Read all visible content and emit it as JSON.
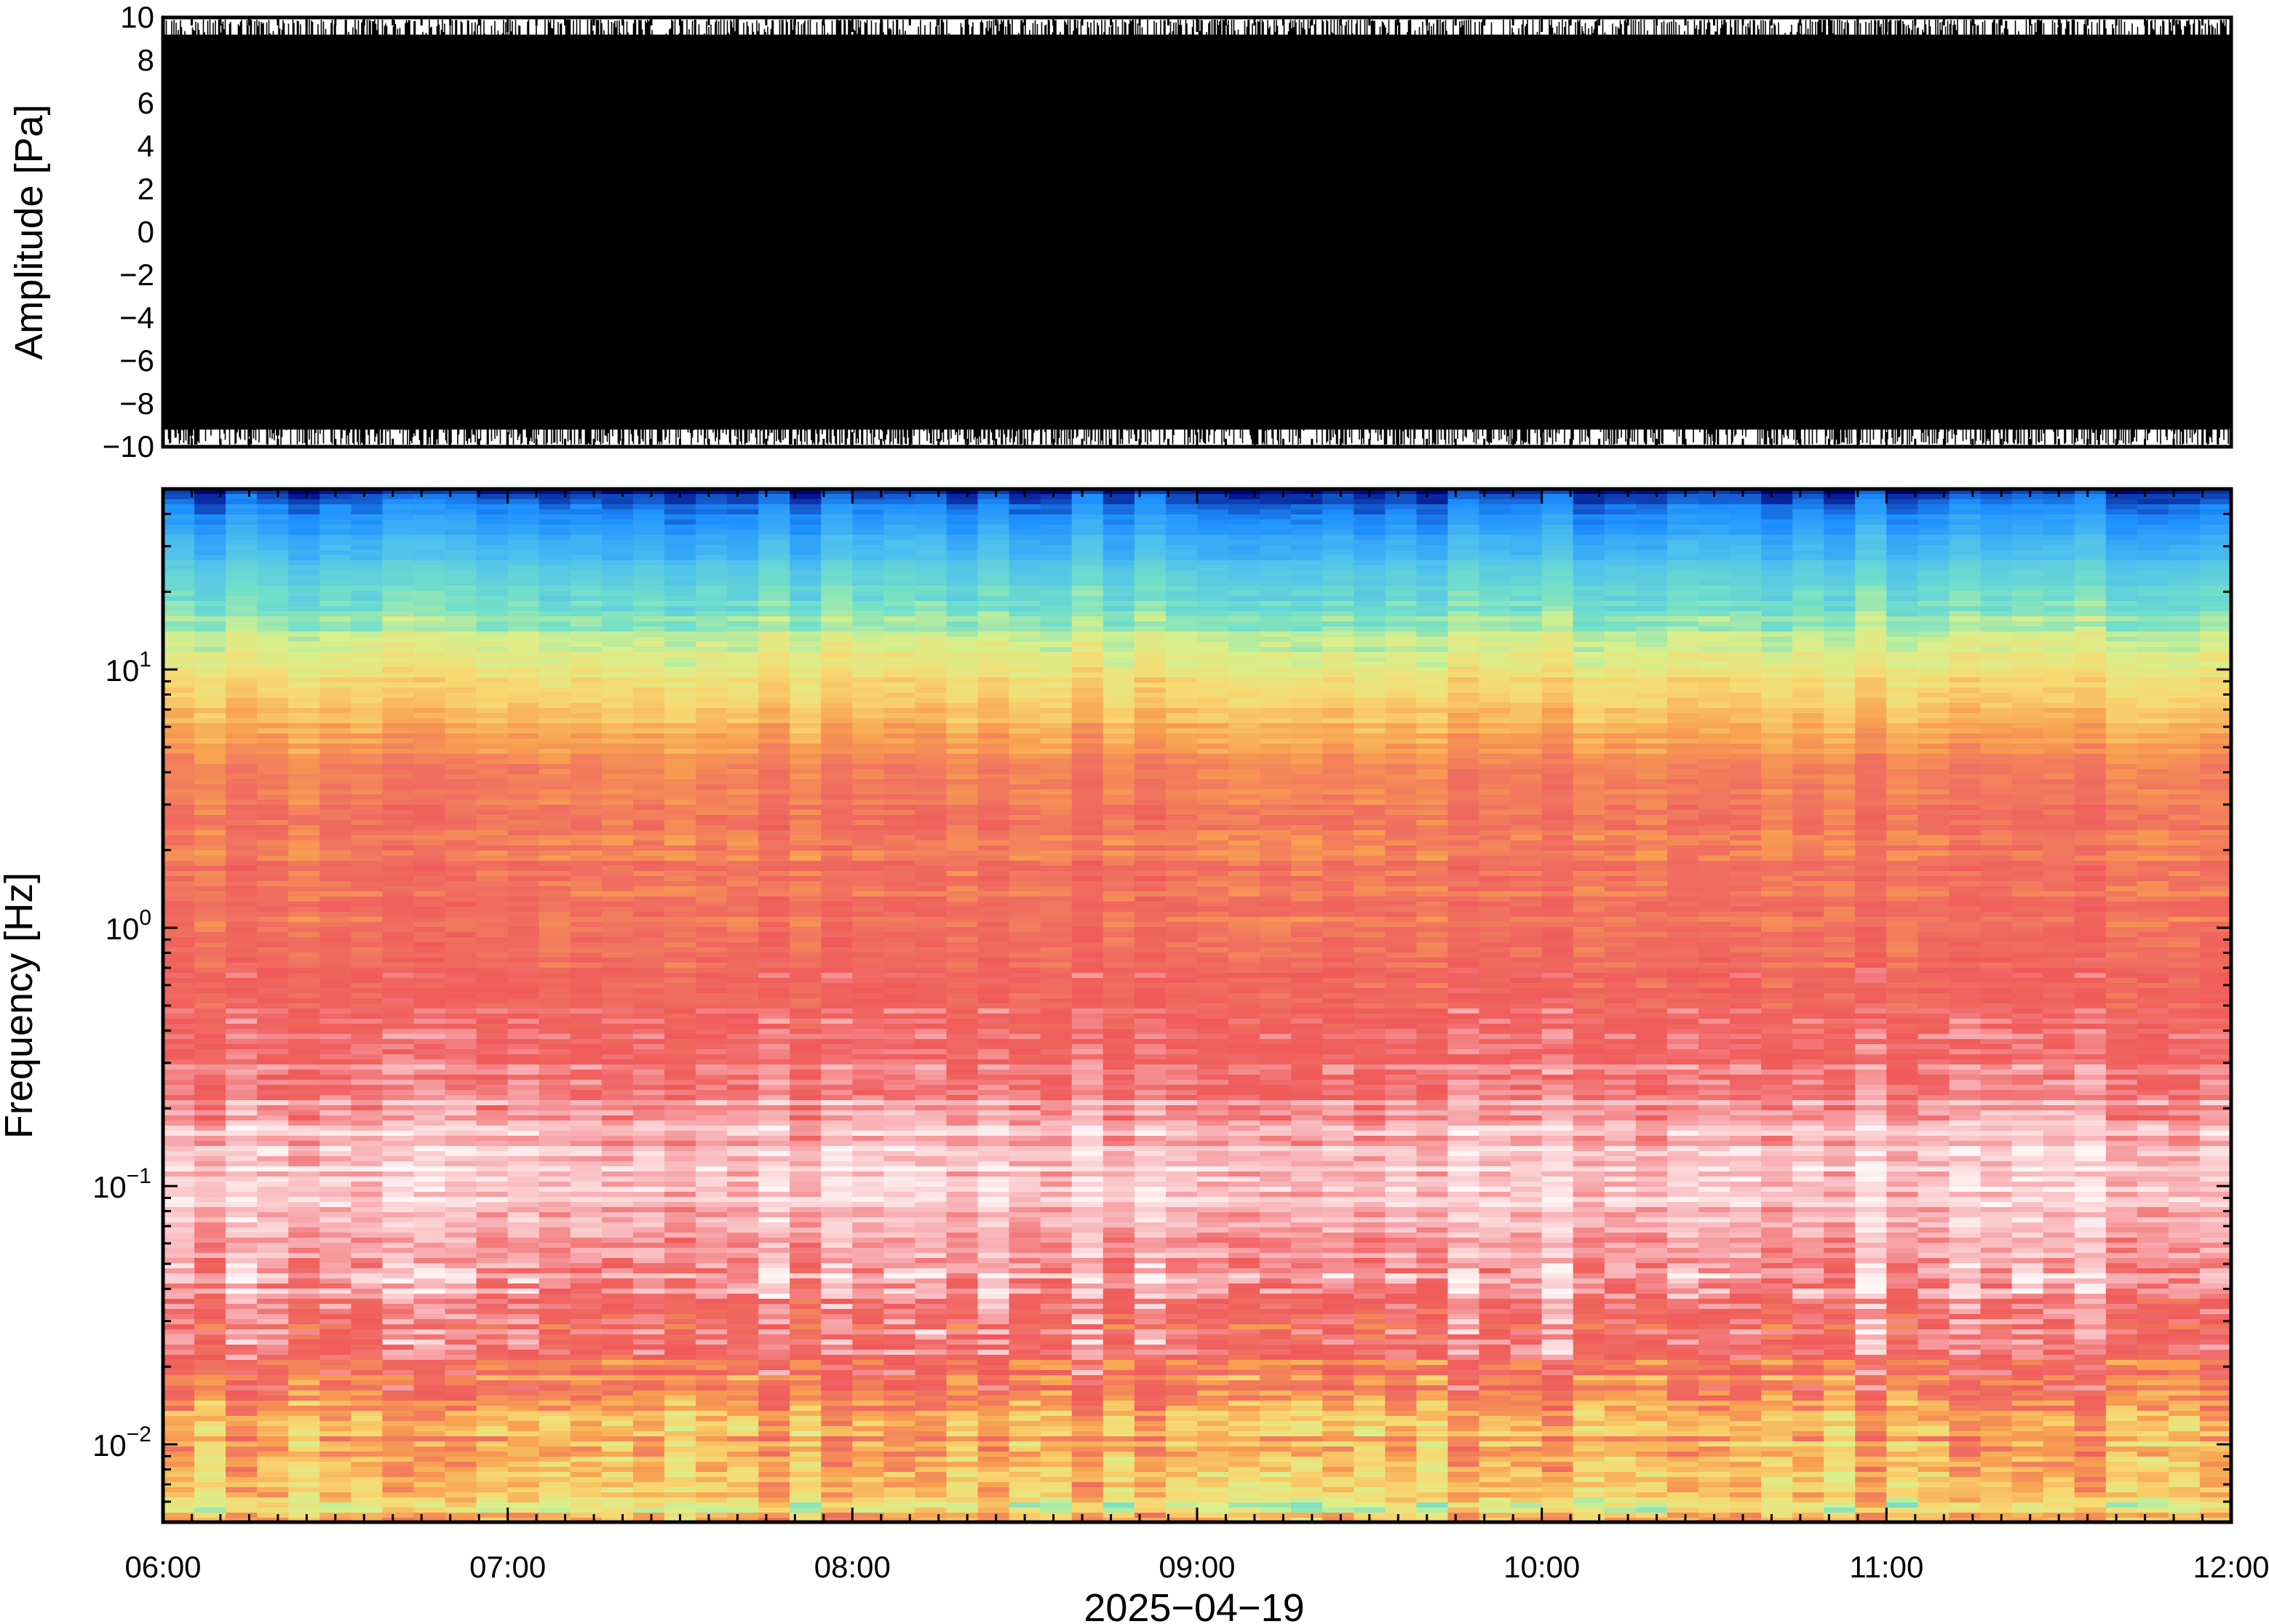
{
  "chart_data": [
    {
      "type": "line",
      "panel": "waveform",
      "ylabel": "Amplitude [Pa]",
      "ylim": [
        -10,
        10
      ],
      "yticks": [
        "10",
        "8",
        "6",
        "4",
        "2",
        "0",
        "−2",
        "−4",
        "−6",
        "−8",
        "−10"
      ],
      "ytick_values": [
        10,
        8,
        6,
        4,
        2,
        0,
        -2,
        -4,
        -6,
        -8,
        -10
      ],
      "xlim": [
        "06:00",
        "12:00"
      ],
      "series": [
        {
          "color": "#000000",
          "description_values": "dense pressure trace filling nearly the full range, frequently clipping at ±10 Pa",
          "envelope_top": [
            9.9,
            9.8,
            9.9,
            9.7,
            9.9,
            9.8,
            9.9,
            9.8,
            9.9,
            9.8,
            9.9,
            9.8
          ],
          "envelope_bottom": [
            -9.9,
            -9.8,
            -9.9,
            -9.8,
            -9.9,
            -9.8,
            -9.9,
            -9.8,
            -9.9,
            -9.8,
            -9.9,
            -9.8
          ]
        }
      ]
    },
    {
      "type": "heatmap",
      "panel": "spectrogram",
      "ylabel": "Frequency [Hz]",
      "yscale": "log",
      "ylim": [
        0.005,
        50
      ],
      "yticks": [
        {
          "base": "10",
          "exp": "1",
          "value": 10
        },
        {
          "base": "10",
          "exp": "0",
          "value": 1
        },
        {
          "base": "10",
          "exp": "−1",
          "value": 0.1
        },
        {
          "base": "10",
          "exp": "−2",
          "value": 0.01
        }
      ],
      "xlim": [
        "06:00",
        "12:00"
      ],
      "xlabel": "2025−04−19",
      "xticks": [
        "06:00",
        "07:00",
        "08:00",
        "09:00",
        "10:00",
        "11:00",
        "12:00"
      ],
      "colormap_stops": [
        "#00007a",
        "#1e90ff",
        "#4ec0ee",
        "#72e0c8",
        "#d8f08c",
        "#f8d870",
        "#f8a050",
        "#f07060",
        "#f05a5a",
        "#f8b0b4",
        "#fff5f5"
      ],
      "band_profile": {
        "frequency_hz": [
          50,
          45,
          30,
          15,
          8,
          4,
          1,
          0.3,
          0.1,
          0.04,
          0.02,
          0.012,
          0.007
        ],
        "level": [
          0.0,
          0.08,
          0.18,
          0.35,
          0.52,
          0.66,
          0.72,
          0.84,
          0.96,
          0.88,
          0.74,
          0.62,
          0.52
        ]
      }
    }
  ],
  "colors": {
    "frame": "#000000",
    "background": "#ffffff"
  }
}
